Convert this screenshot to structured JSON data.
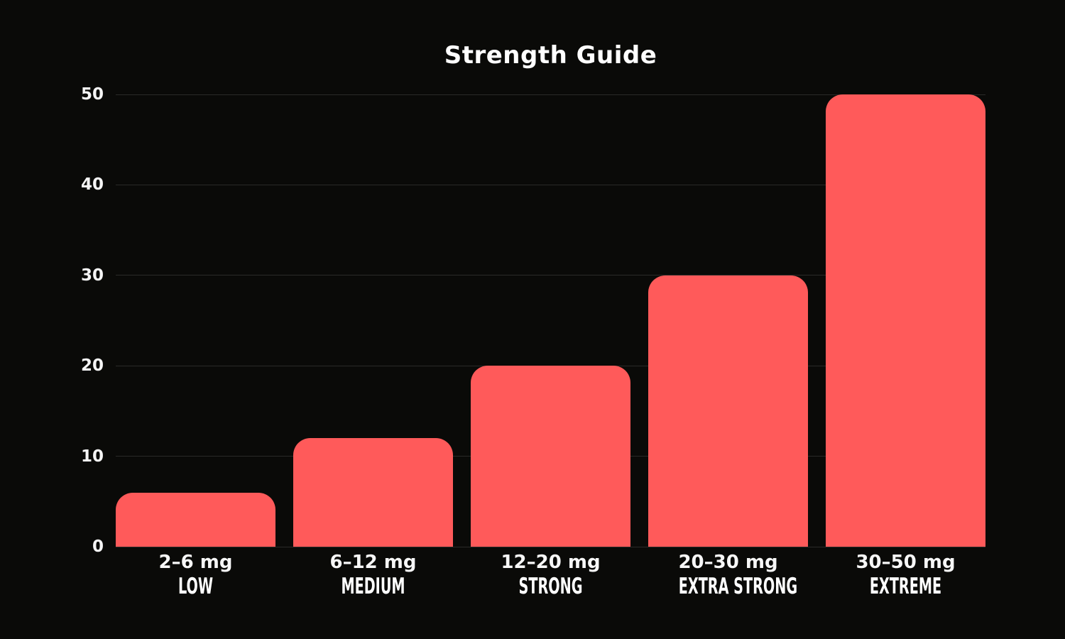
{
  "chart_data": {
    "type": "bar",
    "title": "Strength Guide",
    "categories": [
      "2–6 mg",
      "6–12 mg",
      "12–20 mg",
      "20–30 mg",
      "30–50 mg"
    ],
    "category_tiers": [
      "LOW",
      "MEDIUM",
      "STRONG",
      "EXTRA STRONG",
      "EXTREME"
    ],
    "values": [
      6,
      12,
      20,
      30,
      50
    ],
    "xlabel": "",
    "ylabel": "",
    "ylim": [
      0,
      50
    ],
    "yticks": [
      0,
      10,
      20,
      30,
      40,
      50
    ],
    "grid": true,
    "legend": false,
    "bar_color": "#ff5a5a",
    "gridline_color": "#2a2a28",
    "background_color": "#0a0a08",
    "text_color": "#ffffff"
  }
}
